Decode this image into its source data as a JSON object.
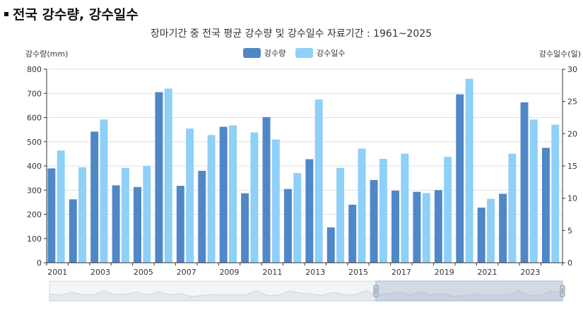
{
  "heading": "전국 강수량, 강수일수",
  "chart_data": {
    "type": "bar",
    "title": "장마기간 중 전국 평균 강수량 및 강수일수 자료기간 : 1961~2025",
    "ylabel": "강수량(mm)",
    "y2label": "강수일수(일)",
    "ylim": [
      0,
      800
    ],
    "y2lim": [
      0,
      30
    ],
    "yticks": [
      0,
      100,
      200,
      300,
      400,
      500,
      600,
      700,
      800
    ],
    "y2ticks": [
      0,
      5,
      10,
      15,
      20,
      25,
      30
    ],
    "categories": [
      "2001",
      "2002",
      "2003",
      "2004",
      "2005",
      "2006",
      "2007",
      "2008",
      "2009",
      "2010",
      "2011",
      "2012",
      "2013",
      "2014",
      "2015",
      "2016",
      "2017",
      "2018",
      "2019",
      "2020",
      "2021",
      "2022",
      "2023",
      "2024"
    ],
    "xtick_labels": [
      "2001",
      "2003",
      "2005",
      "2007",
      "2009",
      "2011",
      "2013",
      "2015",
      "2017",
      "2019",
      "2021",
      "2023"
    ],
    "series": [
      {
        "name": "강수량",
        "axis": "left",
        "color": "#5087c6",
        "values": [
          390,
          262,
          542,
          320,
          313,
          705,
          318,
          380,
          562,
          287,
          602,
          305,
          428,
          146,
          240,
          342,
          298,
          293,
          300,
          696,
          228,
          285,
          663,
          475
        ]
      },
      {
        "name": "강수일수",
        "axis": "right",
        "color": "#8ed0f8",
        "values": [
          17.4,
          14.8,
          22.2,
          14.7,
          15.0,
          27.0,
          20.8,
          19.8,
          21.3,
          20.2,
          19.1,
          13.9,
          25.3,
          14.7,
          17.7,
          16.1,
          16.9,
          10.8,
          16.4,
          28.5,
          9.9,
          16.9,
          22.2,
          21.4
        ]
      }
    ],
    "legend_position": "top-center",
    "grid": true,
    "range_selector": true
  }
}
